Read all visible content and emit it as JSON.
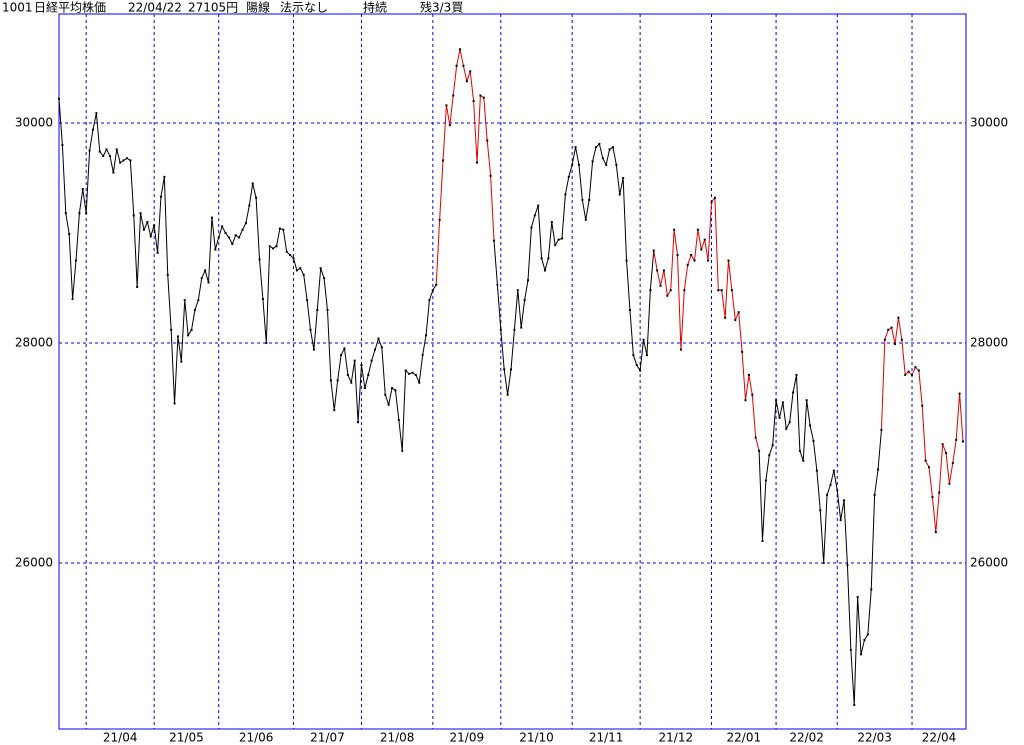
{
  "header": [
    "1001",
    "日経平均株価",
    "22/04/22",
    "27105円",
    "陽線",
    "法示なし",
    "持続",
    "残3/3買"
  ],
  "chart_data": {
    "type": "line",
    "ylim": [
      24491,
      30991
    ],
    "yticks": [
      26000,
      28000,
      30000
    ],
    "xlim": [
      0,
      266
    ],
    "xticks": [
      {
        "value": 8,
        "label": "21/04"
      },
      {
        "value": 28,
        "label": "21/05"
      },
      {
        "value": 47,
        "label": "21/06"
      },
      {
        "value": 69,
        "label": "21/07"
      },
      {
        "value": 89,
        "label": "21/08"
      },
      {
        "value": 110,
        "label": "21/09"
      },
      {
        "value": 130,
        "label": "21/10"
      },
      {
        "value": 151,
        "label": "21/11"
      },
      {
        "value": 171,
        "label": "21/12"
      },
      {
        "value": 192,
        "label": "22/01"
      },
      {
        "value": 211,
        "label": "22/02"
      },
      {
        "value": 229,
        "label": "22/03"
      },
      {
        "value": 251,
        "label": "22/04"
      }
    ],
    "grid": true,
    "color": "#000000",
    "highlight_color": "#e00000",
    "grid_color": "#0000ff",
    "highlight_ranges": [
      [
        111,
        128
      ],
      [
        175,
        206
      ],
      [
        242,
        266
      ]
    ],
    "values": [
      30220,
      29800,
      29180,
      28990,
      28400,
      28750,
      29180,
      29400,
      29180,
      29750,
      29940,
      30090,
      29740,
      29700,
      29760,
      29700,
      29550,
      29760,
      29640,
      29660,
      29680,
      29660,
      29160,
      28510,
      29180,
      29030,
      29100,
      28970,
      29070,
      28820,
      29330,
      29510,
      28620,
      28120,
      27450,
      28060,
      27830,
      28390,
      28070,
      28120,
      28300,
      28390,
      28590,
      28660,
      28550,
      29140,
      28850,
      28960,
      29060,
      29000,
      28960,
      28900,
      28980,
      28960,
      29030,
      29090,
      29250,
      29450,
      29320,
      28760,
      28400,
      28000,
      28880,
      28860,
      28880,
      29040,
      29030,
      28830,
      28800,
      28770,
      28660,
      28680,
      28620,
      28390,
      28120,
      27940,
      28300,
      28680,
      28590,
      28300,
      27660,
      27390,
      27660,
      27890,
      27950,
      27710,
      27640,
      27840,
      27280,
      27800,
      27590,
      27710,
      27840,
      27940,
      28040,
      27960,
      27530,
      27440,
      27590,
      27570,
      27300,
      27020,
      27750,
      27720,
      27730,
      27710,
      27640,
      27890,
      28070,
      28390,
      28480,
      28530,
      29120,
      29660,
      30160,
      29980,
      30250,
      30520,
      30670,
      30520,
      30380,
      30470,
      30200,
      29640,
      30250,
      30230,
      29840,
      29520,
      28930,
      28530,
      28120,
      27760,
      27530,
      27760,
      28120,
      28480,
      28140,
      28390,
      28570,
      29050,
      29160,
      29250,
      28770,
      28660,
      28770,
      29100,
      28890,
      28940,
      28950,
      29350,
      29510,
      29620,
      29780,
      29620,
      29300,
      29120,
      29300,
      29650,
      29780,
      29810,
      29680,
      29620,
      29760,
      29780,
      29620,
      29350,
      29500,
      28750,
      28300,
      27890,
      27800,
      27750,
      28030,
      27890,
      28480,
      28840,
      28660,
      28520,
      28660,
      28430,
      28480,
      29030,
      28800,
      27940,
      28480,
      28710,
      28800,
      28750,
      29030,
      28850,
      28940,
      28750,
      29280,
      29320,
      28480,
      28480,
      28230,
      28750,
      28480,
      28210,
      28280,
      27920,
      27480,
      27710,
      27530,
      27140,
      27020,
      26200,
      26750,
      26980,
      27070,
      27480,
      27320,
      27460,
      27220,
      27280,
      27550,
      27710,
      27020,
      26930,
      27480,
      27250,
      27110,
      26840,
      26480,
      26000,
      26620,
      26710,
      26840,
      26660,
      26390,
      26570,
      25980,
      25210,
      24710,
      25690,
      25170,
      25300,
      25350,
      25760,
      26620,
      26850,
      27210,
      28030,
      28120,
      28140,
      27990,
      28230,
      28030,
      27710,
      27740,
      27710,
      27780,
      27750,
      27430,
      26930,
      26870,
      26600,
      26280,
      26640,
      27080,
      27000,
      26720,
      26910,
      27120,
      27540,
      27105
    ]
  }
}
